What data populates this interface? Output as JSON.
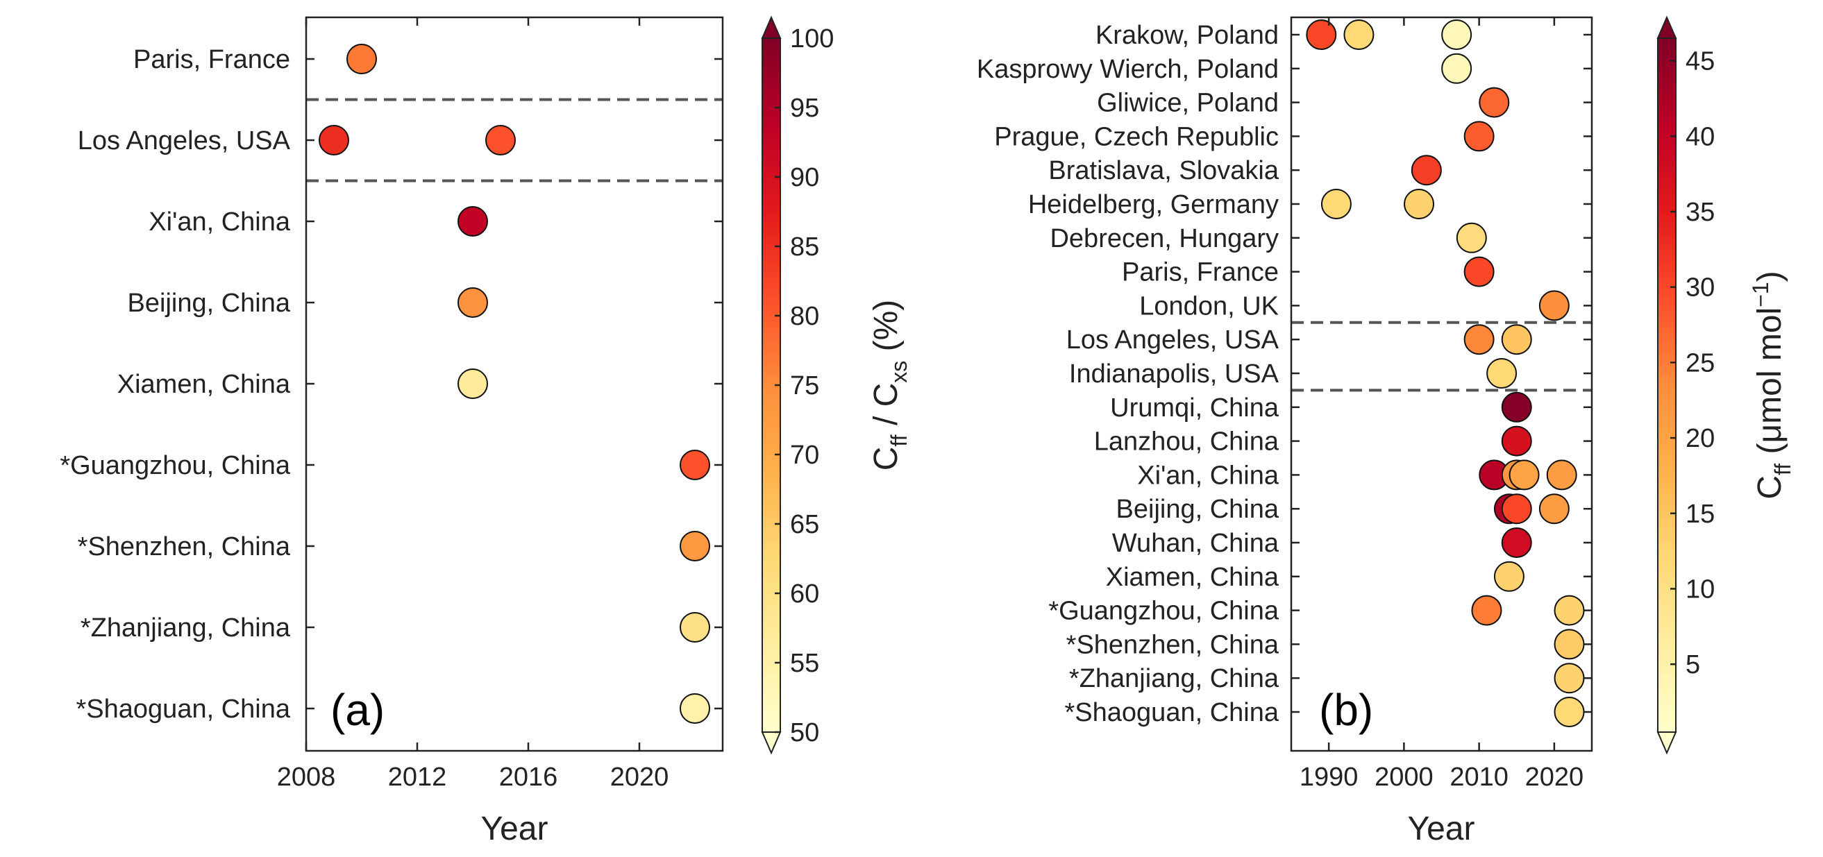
{
  "chart_data": [
    {
      "type": "scatter",
      "panel_label": "(a)",
      "xlabel": "Year",
      "xlim": [
        2008,
        2023
      ],
      "xticks": [
        2008,
        2012,
        2016,
        2020
      ],
      "categories": [
        "Paris, France",
        "Los Angeles, USA",
        "Xi'an, China",
        "Beijing, China",
        "Xiamen, China",
        "*Guangzhou, China",
        "*Shenzhen, China",
        "*Zhanjiang, China",
        "*Shaoguan, China"
      ],
      "separators_after": [
        0,
        1
      ],
      "points": [
        {
          "category": "Paris, France",
          "year": 2010,
          "value": 77
        },
        {
          "category": "Los Angeles, USA",
          "year": 2009,
          "value": 85
        },
        {
          "category": "Los Angeles, USA",
          "year": 2015,
          "value": 81
        },
        {
          "category": "Xi'an, China",
          "year": 2014,
          "value": 93
        },
        {
          "category": "Beijing, China",
          "year": 2014,
          "value": 74
        },
        {
          "category": "Xiamen, China",
          "year": 2014,
          "value": 57
        },
        {
          "category": "*Guangzhou, China",
          "year": 2022,
          "value": 81
        },
        {
          "category": "*Shenzhen, China",
          "year": 2022,
          "value": 73
        },
        {
          "category": "*Zhanjiang, China",
          "year": 2022,
          "value": 60
        },
        {
          "category": "*Shaoguan, China",
          "year": 2022,
          "value": 55
        }
      ],
      "colorbar": {
        "label_main": "C",
        "label_sub1": "ff",
        "label_mid": " / C",
        "label_sub2": "xs",
        "label_tail": " (%)",
        "range": [
          50,
          100
        ],
        "ticks": [
          50,
          55,
          60,
          65,
          70,
          75,
          80,
          85,
          90,
          95,
          100
        ]
      }
    },
    {
      "type": "scatter",
      "panel_label": "(b)",
      "xlabel": "Year",
      "xlim": [
        1985,
        2025
      ],
      "xticks": [
        1990,
        2000,
        2010,
        2020
      ],
      "categories": [
        "Krakow, Poland",
        "Kasprowy Wierch, Poland",
        "Gliwice, Poland",
        "Prague, Czech Republic",
        "Bratislava, Slovakia",
        "Heidelberg, Germany",
        "Debrecen, Hungary",
        "Paris, France",
        "London, UK",
        "Los Angeles, USA",
        "Indianapolis, USA",
        "Urumqi, China",
        "Lanzhou, China",
        "Xi'an, China",
        "Beijing, China",
        "Wuhan, China",
        "Xiamen, China",
        "*Guangzhou, China",
        "*Shenzhen, China",
        "*Zhanjiang, China",
        "*Shaoguan, China"
      ],
      "separators_after": [
        8,
        10
      ],
      "points": [
        {
          "category": "Krakow, Poland",
          "year": 1989,
          "value": 30
        },
        {
          "category": "Krakow, Poland",
          "year": 1994,
          "value": 12
        },
        {
          "category": "Krakow, Poland",
          "year": 2007,
          "value": 3
        },
        {
          "category": "Kasprowy Wierch, Poland",
          "year": 2007,
          "value": 3
        },
        {
          "category": "Gliwice, Poland",
          "year": 2012,
          "value": 27
        },
        {
          "category": "Prague, Czech Republic",
          "year": 2010,
          "value": 28
        },
        {
          "category": "Bratislava, Slovakia",
          "year": 2003,
          "value": 31
        },
        {
          "category": "Heidelberg, Germany",
          "year": 1991,
          "value": 12
        },
        {
          "category": "Heidelberg, Germany",
          "year": 2002,
          "value": 13
        },
        {
          "category": "Debrecen, Hungary",
          "year": 2009,
          "value": 11
        },
        {
          "category": "Paris, France",
          "year": 2010,
          "value": 30
        },
        {
          "category": "London, UK",
          "year": 2020,
          "value": 23
        },
        {
          "category": "Los Angeles, USA",
          "year": 2010,
          "value": 24
        },
        {
          "category": "Los Angeles, USA",
          "year": 2015,
          "value": 15
        },
        {
          "category": "Indianapolis, USA",
          "year": 2013,
          "value": 12
        },
        {
          "category": "Urumqi, China",
          "year": 2015,
          "value": 46
        },
        {
          "category": "Lanzhou, China",
          "year": 2015,
          "value": 37
        },
        {
          "category": "Xi'an, China",
          "year": 2012,
          "value": 41
        },
        {
          "category": "Xi'an, China",
          "year": 2015,
          "value": 22
        },
        {
          "category": "Xi'an, China",
          "year": 2016,
          "value": 20
        },
        {
          "category": "Xi'an, China",
          "year": 2021,
          "value": 21
        },
        {
          "category": "Beijing, China",
          "year": 2014,
          "value": 42
        },
        {
          "category": "Beijing, China",
          "year": 2015,
          "value": 30
        },
        {
          "category": "Beijing, China",
          "year": 2020,
          "value": 21
        },
        {
          "category": "Wuhan, China",
          "year": 2015,
          "value": 38
        },
        {
          "category": "Xiamen, China",
          "year": 2014,
          "value": 13
        },
        {
          "category": "*Guangzhou, China",
          "year": 2011,
          "value": 25
        },
        {
          "category": "*Guangzhou, China",
          "year": 2022,
          "value": 13
        },
        {
          "category": "*Shenzhen, China",
          "year": 2022,
          "value": 14
        },
        {
          "category": "*Zhanjiang, China",
          "year": 2022,
          "value": 13
        },
        {
          "category": "*Shaoguan, China",
          "year": 2022,
          "value": 12
        }
      ],
      "colorbar": {
        "label_main": "C",
        "label_sub1": "ff",
        "label_tail": " (μmol mol",
        "label_sup": "−1",
        "label_close": ")",
        "range": [
          0.5,
          46.5
        ],
        "ticks": [
          5,
          10,
          15,
          20,
          25,
          30,
          35,
          40,
          45
        ]
      }
    }
  ]
}
